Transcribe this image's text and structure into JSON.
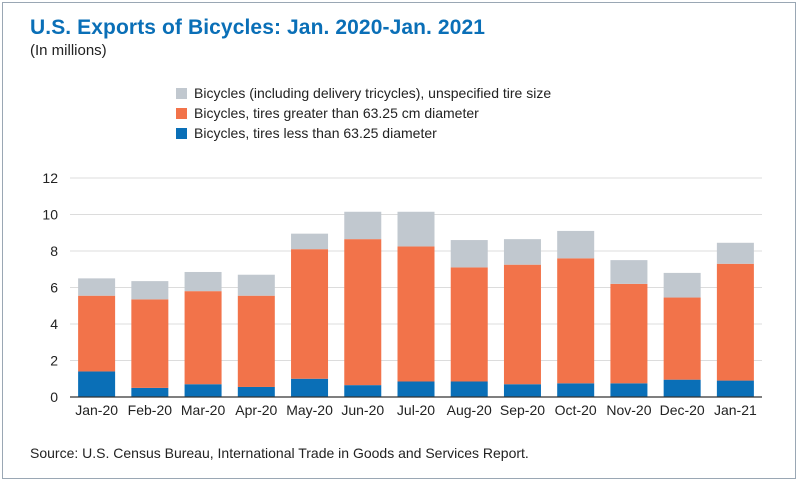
{
  "title": "U.S. Exports of Bicycles: Jan. 2020-Jan. 2021",
  "subtitle": "(In millions)",
  "source": "Source: U.S. Census Bureau, International Trade in Goods and Services Report.",
  "colors": {
    "small": "#0a6fb7",
    "large": "#f2734a",
    "unspecified": "#c1c8cf",
    "title": "#0a6fb7",
    "grid": "#dcdcdc",
    "axis": "#333333"
  },
  "chart_data": {
    "type": "bar",
    "stacked": true,
    "categories": [
      "Jan-20",
      "Feb-20",
      "Mar-20",
      "Apr-20",
      "May-20",
      "Jun-20",
      "Jul-20",
      "Aug-20",
      "Sep-20",
      "Oct-20",
      "Nov-20",
      "Dec-20",
      "Jan-21"
    ],
    "series": [
      {
        "name": "Bicycles, tires less than 63.25 diameter",
        "color": "#0a6fb7",
        "values": [
          1.4,
          0.5,
          0.7,
          0.55,
          1.0,
          0.65,
          0.85,
          0.85,
          0.7,
          0.75,
          0.75,
          0.95,
          0.9
        ]
      },
      {
        "name": "Bicycles, tires greater than 63.25 cm diameter",
        "color": "#f2734a",
        "values": [
          4.15,
          4.85,
          5.1,
          5.0,
          7.1,
          8.0,
          7.4,
          6.25,
          6.55,
          6.85,
          5.45,
          4.5,
          6.4
        ]
      },
      {
        "name": "Bicycles (including delivery tricycles), unspecified tire size",
        "color": "#c1c8cf",
        "values": [
          0.95,
          1.0,
          1.05,
          1.15,
          0.85,
          1.5,
          1.9,
          1.5,
          1.4,
          1.5,
          1.3,
          1.35,
          1.15
        ]
      }
    ],
    "legend_order": [
      "Bicycles (including delivery tricycles), unspecified tire size",
      "Bicycles, tires greater than 63.25 cm diameter",
      "Bicycles, tires less than 63.25 diameter"
    ],
    "legend_position": "top-center",
    "ylim": [
      0,
      12
    ],
    "yticks": [
      0,
      2,
      4,
      6,
      8,
      10,
      12
    ],
    "grid": true
  }
}
